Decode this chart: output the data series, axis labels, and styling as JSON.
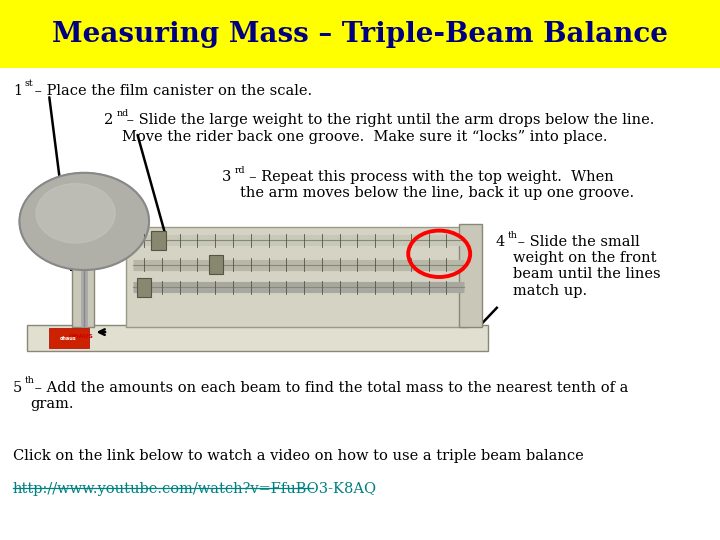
{
  "title": "Measuring Mass – Triple-Beam Balance",
  "title_bg": "#FFFF00",
  "title_color": "#000080",
  "bg_color": "#FFFFFF",
  "line1_prefix": "1",
  "line1_super": "st",
  "line1_text": " – Place the film canister on the scale.",
  "line2_prefix": "2",
  "line2_super": "nd",
  "line2_text": " – Slide the large weight to the right until the arm drops below the line.\nMove the rider back one groove.  Make sure it “locks” into place.",
  "line3_prefix": "3",
  "line3_super": "rd",
  "line3_text": "  – Repeat this process with the top weight.  When\nthe arm moves below the line, back it up one groove.",
  "line4_prefix": "4",
  "line4_super": "th",
  "line4_text": " – Slide the small\nweight on the front\nbeam until the lines\nmatch up.",
  "line5_prefix": "5",
  "line5_super": "th",
  "line5_text": " – Add the amounts on each beam to find the total mass to the nearest tenth of a\ngram.",
  "link_label": "Click on the link below to watch a video on how to use a triple beam balance",
  "link_url": "http://www.youtube.com/watch?v=FfuBO3-K8AQ",
  "link_color": "#008080",
  "text_color": "#000000",
  "font_size": 10.5,
  "title_font_size": 20
}
